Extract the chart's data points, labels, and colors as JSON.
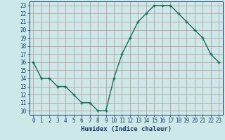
{
  "x": [
    0,
    1,
    2,
    3,
    4,
    5,
    6,
    7,
    8,
    9,
    10,
    11,
    12,
    13,
    14,
    15,
    16,
    17,
    18,
    19,
    20,
    21,
    22,
    23
  ],
  "y": [
    16,
    14,
    14,
    13,
    13,
    12,
    11,
    11,
    10,
    10,
    14,
    17,
    19,
    21,
    22,
    23,
    23,
    23,
    22,
    21,
    20,
    19,
    17,
    16
  ],
  "line_color": "#1a6b5a",
  "marker": "+",
  "bg_color": "#cce8e8",
  "grid_color": "#b89090",
  "xlabel": "Humidex (Indice chaleur)",
  "xlim": [
    -0.5,
    23.5
  ],
  "ylim": [
    9.5,
    23.5
  ],
  "yticks": [
    10,
    11,
    12,
    13,
    14,
    15,
    16,
    17,
    18,
    19,
    20,
    21,
    22,
    23
  ],
  "xticks": [
    0,
    1,
    2,
    3,
    4,
    5,
    6,
    7,
    8,
    9,
    10,
    11,
    12,
    13,
    14,
    15,
    16,
    17,
    18,
    19,
    20,
    21,
    22,
    23
  ],
  "font_color": "#1a3a6a",
  "linewidth": 1.0,
  "markersize": 3.5,
  "tick_fontsize": 5.5,
  "xlabel_fontsize": 6.5
}
